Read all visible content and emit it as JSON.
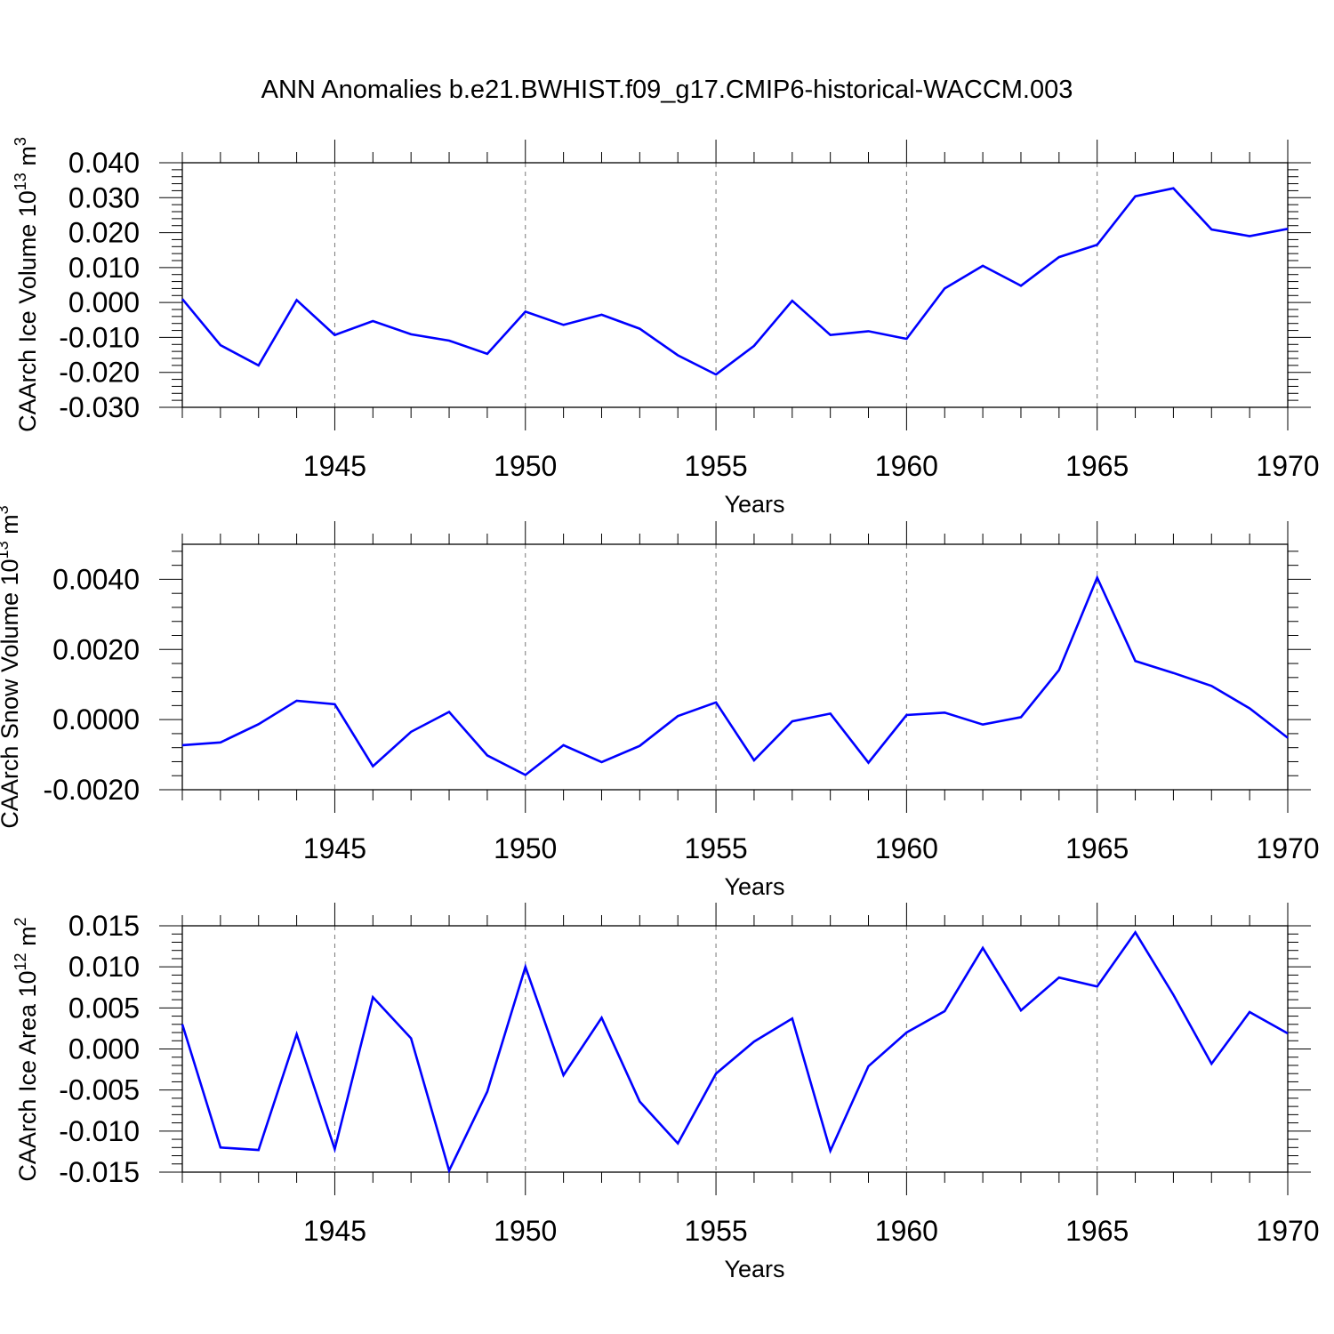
{
  "title": "ANN Anomalies b.e21.BWHIST.f09_g17.CMIP6-historical-WACCM.003",
  "colors": {
    "line": "#0000ff",
    "axis": "#000000",
    "grid": "#777777",
    "background": "#ffffff"
  },
  "chart_data": [
    {
      "type": "line",
      "ylabel": {
        "main": "CAArch Ice Volume 10",
        "exp": "13",
        "unit": " m",
        "unit_exp": "3"
      },
      "xlabel": "Years",
      "xlim": [
        1941,
        1970
      ],
      "ylim": [
        -0.03,
        0.04
      ],
      "yticks": [
        "0.040",
        "0.030",
        "0.020",
        "0.010",
        "0.000",
        "-0.010",
        "-0.020",
        "-0.030"
      ],
      "ytick_values": [
        0.04,
        0.03,
        0.02,
        0.01,
        0.0,
        -0.01,
        -0.02,
        -0.03
      ],
      "xticks": [
        "1945",
        "1950",
        "1955",
        "1960",
        "1965",
        "1970"
      ],
      "xtick_values": [
        1945,
        1950,
        1955,
        1960,
        1965,
        1970
      ],
      "grid": "vertical dashed at labeled years",
      "series": [
        {
          "x": [
            1941,
            1942,
            1943,
            1944,
            1945,
            1946,
            1947,
            1948,
            1949,
            1950,
            1951,
            1952,
            1953,
            1954,
            1955,
            1956,
            1957,
            1958,
            1959,
            1960,
            1961,
            1962,
            1963,
            1964,
            1965,
            1966,
            1967,
            1968,
            1969,
            1970
          ],
          "values": [
            0.001,
            -0.0122,
            -0.018,
            0.0007,
            -0.0093,
            -0.0053,
            -0.0091,
            -0.0109,
            -0.0147,
            -0.0026,
            -0.0064,
            -0.0035,
            -0.0075,
            -0.0151,
            -0.0206,
            -0.0124,
            0.0005,
            -0.0093,
            -0.0082,
            -0.0104,
            0.004,
            0.0105,
            0.0048,
            0.013,
            0.0165,
            0.0304,
            0.0327,
            0.0209,
            0.019,
            0.0211
          ]
        }
      ]
    },
    {
      "type": "line",
      "ylabel": {
        "main": "CAArch Snow Volume 10",
        "exp": "13",
        "unit": " m",
        "unit_exp": "3"
      },
      "xlabel": "Years",
      "xlim": [
        1941,
        1970
      ],
      "ylim": [
        -0.002,
        0.005
      ],
      "yticks": [
        "0.0040",
        "0.0020",
        "0.0000",
        "-0.0020"
      ],
      "ytick_values": [
        0.004,
        0.002,
        0.0,
        -0.002
      ],
      "xticks": [
        "1945",
        "1950",
        "1955",
        "1960",
        "1965",
        "1970"
      ],
      "xtick_values": [
        1945,
        1950,
        1955,
        1960,
        1965,
        1970
      ],
      "grid": "vertical dashed at labeled years",
      "series": [
        {
          "x": [
            1941,
            1942,
            1943,
            1944,
            1945,
            1946,
            1947,
            1948,
            1949,
            1950,
            1951,
            1952,
            1953,
            1954,
            1955,
            1956,
            1957,
            1958,
            1959,
            1960,
            1961,
            1962,
            1963,
            1964,
            1965,
            1966,
            1967,
            1968,
            1969,
            1970
          ],
          "values": [
            -0.00073,
            -0.00065,
            -0.00013,
            0.00054,
            0.00044,
            -0.00133,
            -0.00035,
            0.00022,
            -0.00102,
            -0.00158,
            -0.00073,
            -0.00121,
            -0.00075,
            0.0001,
            0.00049,
            -0.00116,
            -5e-05,
            0.00017,
            -0.00123,
            0.00013,
            0.0002,
            -0.00014,
            7e-05,
            0.00141,
            0.00405,
            0.00167,
            0.00133,
            0.00096,
            0.00032,
            -0.00052
          ]
        }
      ]
    },
    {
      "type": "line",
      "ylabel": {
        "main": "CAArch Ice Area 10",
        "exp": "12",
        "unit": " m",
        "unit_exp": "2"
      },
      "xlabel": "Years",
      "xlim": [
        1941,
        1970
      ],
      "ylim": [
        -0.015,
        0.015
      ],
      "yticks": [
        "0.015",
        "0.010",
        "0.005",
        "0.000",
        "-0.005",
        "-0.010",
        "-0.015"
      ],
      "ytick_values": [
        0.015,
        0.01,
        0.005,
        0.0,
        -0.005,
        -0.01,
        -0.015
      ],
      "xticks": [
        "1945",
        "1950",
        "1955",
        "1960",
        "1965",
        "1970"
      ],
      "xtick_values": [
        1945,
        1950,
        1955,
        1960,
        1965,
        1970
      ],
      "grid": "vertical dashed at labeled years",
      "series": [
        {
          "x": [
            1941,
            1942,
            1943,
            1944,
            1945,
            1946,
            1947,
            1948,
            1949,
            1950,
            1951,
            1952,
            1953,
            1954,
            1955,
            1956,
            1957,
            1958,
            1959,
            1960,
            1961,
            1962,
            1963,
            1964,
            1965,
            1966,
            1967,
            1968,
            1969,
            1970
          ],
          "values": [
            0.003,
            -0.012,
            -0.0123,
            0.0018,
            -0.0122,
            0.0063,
            0.0013,
            -0.0148,
            -0.0052,
            0.01,
            -0.0032,
            0.0038,
            -0.0064,
            -0.0115,
            -0.003,
            0.0009,
            0.0037,
            -0.0124,
            -0.0021,
            0.002,
            0.0046,
            0.0123,
            0.0047,
            0.0087,
            0.0076,
            0.0142,
            0.0066,
            -0.0018,
            0.0045,
            0.0019
          ]
        }
      ]
    }
  ]
}
